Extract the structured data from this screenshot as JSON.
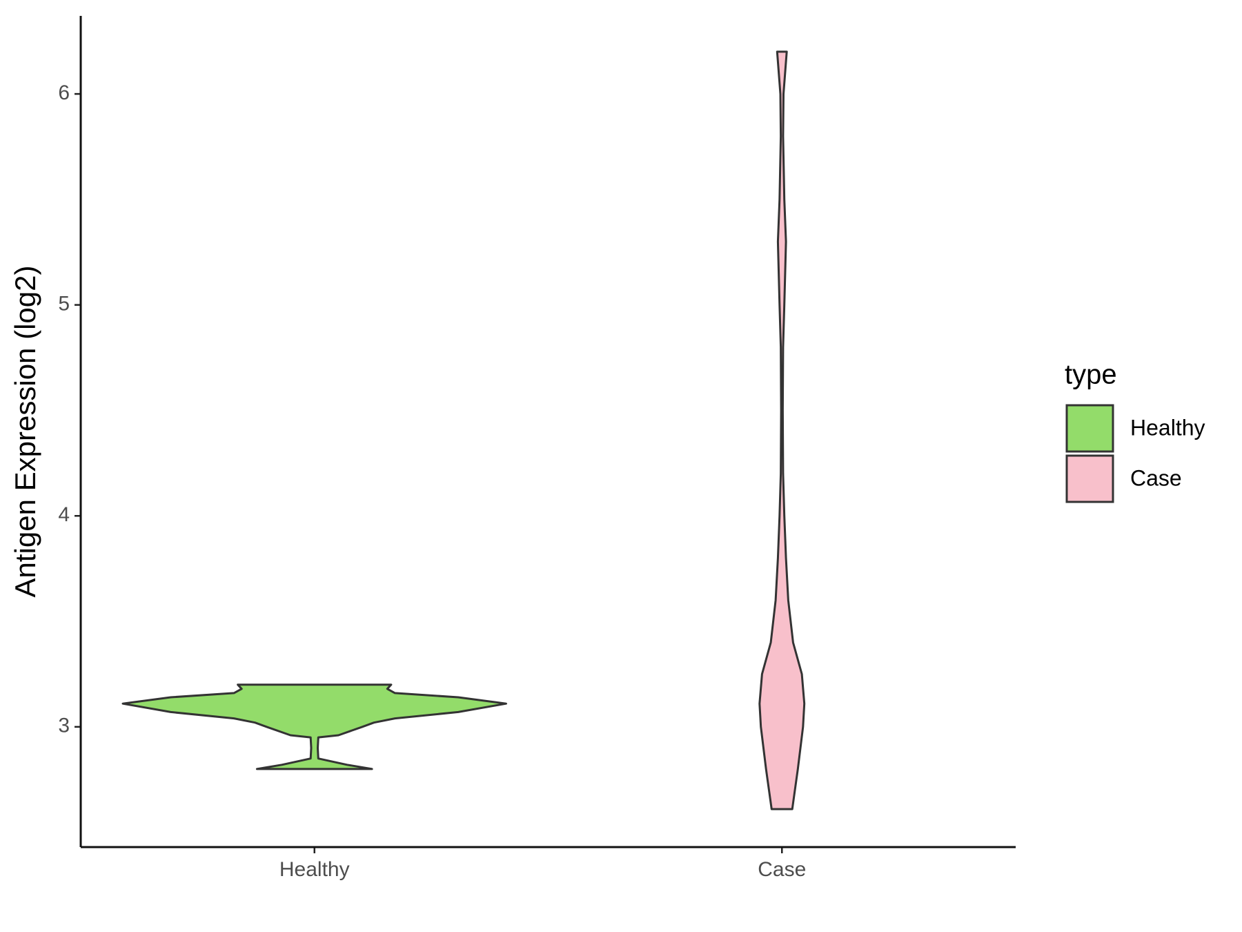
{
  "chart_data": {
    "type": "violin",
    "y_label": "Antigen Expression (log2)",
    "categories": [
      "Healthy",
      "Case"
    ],
    "legend_title": "type",
    "series": [
      {
        "name": "Healthy",
        "color": "#93dc6a",
        "y": [
          2.8,
          2.82,
          2.85,
          2.9,
          2.95,
          2.96,
          3.0,
          3.02,
          3.04,
          3.07,
          3.11,
          3.14,
          3.16,
          3.18,
          3.2
        ],
        "density": [
          0.3,
          0.17,
          0.02,
          0.017,
          0.02,
          0.125,
          0.25,
          0.31,
          0.42,
          0.75,
          1,
          0.75,
          0.42,
          0.38,
          0.4
        ]
      },
      {
        "name": "Case",
        "color": "#f8c0cb",
        "y": [
          2.61,
          2.8,
          3.0,
          3.11,
          3.25,
          3.4,
          3.6,
          3.8,
          4.0,
          4.2,
          4.5,
          4.8,
          5.0,
          5.3,
          5.5,
          5.8,
          6.0,
          6.2
        ],
        "density": [
          0.054,
          0.083,
          0.11,
          0.117,
          0.104,
          0.058,
          0.033,
          0.021,
          0.0125,
          0.006,
          0.004,
          0.006,
          0.0125,
          0.021,
          0.0125,
          0.006,
          0.008,
          0.025
        ]
      }
    ],
    "ylim": [
      2.43,
      6.37
    ],
    "yticks": [
      3,
      4,
      5,
      6
    ]
  }
}
